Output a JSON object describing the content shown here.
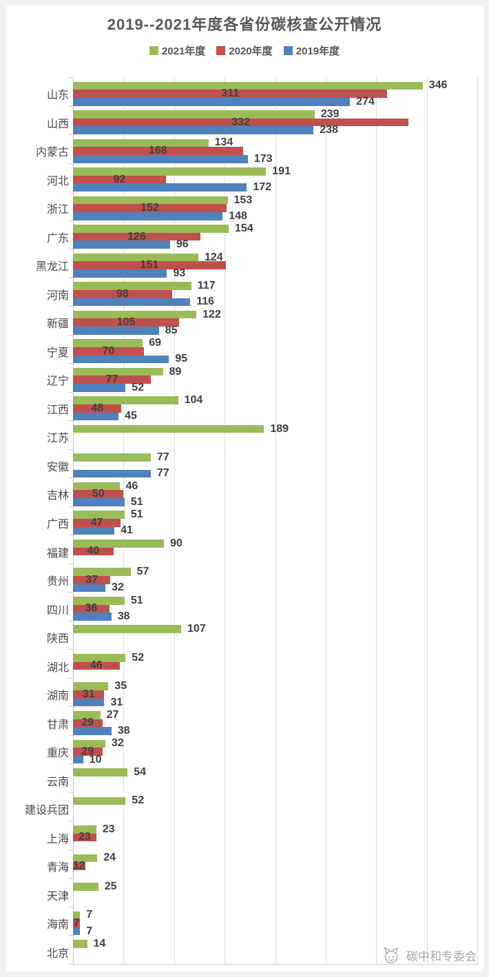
{
  "title": "2019--2021年度各省份碳核查公开情况",
  "legend": [
    {
      "label": "2021年度",
      "color": "#9bbb59"
    },
    {
      "label": "2020年度",
      "color": "#c0504d"
    },
    {
      "label": "2019年度",
      "color": "#4f81bd"
    }
  ],
  "watermark": {
    "text": "碳中和专委会",
    "icon": "cat-logo"
  },
  "colors": {
    "grid": "#dddddd",
    "axis": "#c6c6c6",
    "value_text": "#3f3f3f",
    "category_text": "#4a4a4a"
  },
  "chart_data": {
    "type": "bar",
    "orientation": "horizontal",
    "title": "2019--2021年度各省份碳核查公开情况",
    "xlim": [
      0,
      400
    ],
    "grid_step": 50,
    "grid": true,
    "x_axis_tick_labels_visible": false,
    "legend_position": "top",
    "categories": [
      "山东",
      "山西",
      "内蒙古",
      "河北",
      "浙江",
      "广东",
      "黑龙江",
      "河南",
      "新疆",
      "宁夏",
      "辽宁",
      "江西",
      "江苏",
      "安徽",
      "吉林",
      "广西",
      "福建",
      "贵州",
      "四川",
      "陕西",
      "湖北",
      "湖南",
      "甘肃",
      "重庆",
      "云南",
      "建设兵团",
      "上海",
      "青海",
      "天津",
      "海南",
      "北京"
    ],
    "series": [
      {
        "name": "2021年度",
        "color": "#9bbb59",
        "label_position": "end",
        "values": [
          346,
          239,
          134,
          191,
          153,
          154,
          124,
          117,
          122,
          69,
          89,
          104,
          189,
          77,
          46,
          51,
          90,
          57,
          51,
          107,
          52,
          35,
          27,
          32,
          54,
          52,
          23,
          24,
          25,
          7,
          14
        ]
      },
      {
        "name": "2020年度",
        "color": "#c0504d",
        "label_position": "inside",
        "values": [
          311,
          332,
          168,
          92,
          152,
          126,
          151,
          98,
          105,
          70,
          77,
          48,
          null,
          null,
          50,
          47,
          40,
          37,
          36,
          null,
          46,
          31,
          29,
          29,
          null,
          null,
          23,
          12,
          null,
          7,
          null
        ]
      },
      {
        "name": "2019年度",
        "color": "#4f81bd",
        "label_position": "end",
        "values": [
          274,
          238,
          173,
          172,
          148,
          96,
          93,
          116,
          85,
          95,
          52,
          45,
          null,
          77,
          51,
          41,
          null,
          32,
          38,
          null,
          null,
          31,
          38,
          10,
          null,
          null,
          null,
          null,
          null,
          7,
          null
        ]
      }
    ]
  }
}
